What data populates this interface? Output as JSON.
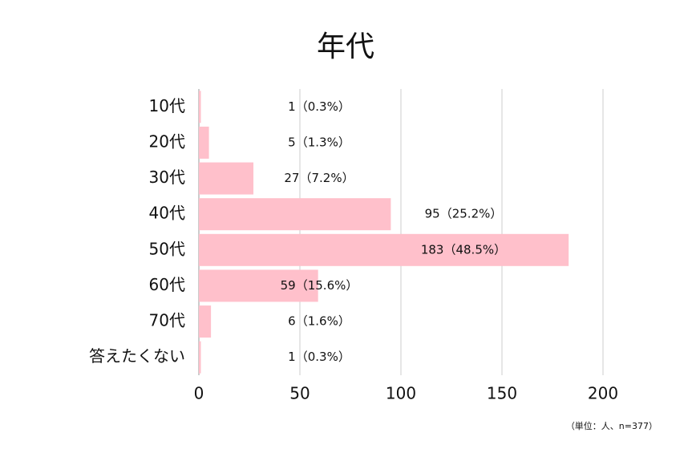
{
  "chart_data": {
    "type": "bar",
    "orientation": "horizontal",
    "title": "年代",
    "categories": [
      "10代",
      "20代",
      "30代",
      "40代",
      "50代",
      "60代",
      "70代",
      "答えたくない"
    ],
    "values": [
      1,
      5,
      27,
      95,
      183,
      59,
      6,
      1
    ],
    "value_labels": [
      "1（0.3%）",
      "5（1.3%）",
      "27（7.2%）",
      "95（25.2%）",
      "183（48.5%）",
      "59（15.6%）",
      "6（1.6%）",
      "1（0.3%）"
    ],
    "color": "#ffc0cb",
    "xlim": [
      0,
      200
    ],
    "xticks": [
      0,
      50,
      100,
      150,
      200
    ],
    "grid": true,
    "annotation": "（単位：人、n=377）"
  }
}
